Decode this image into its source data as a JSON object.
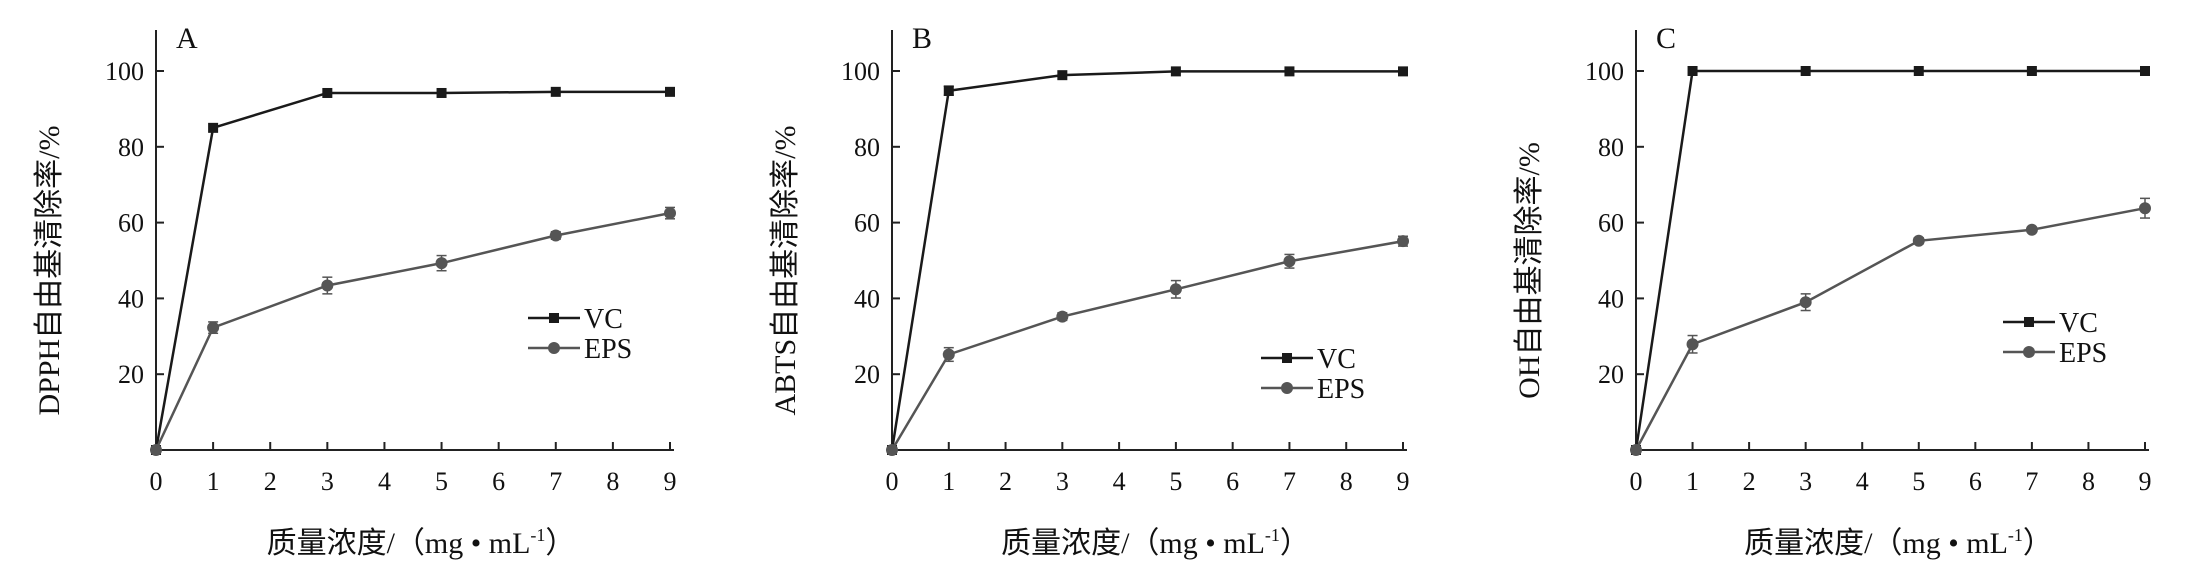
{
  "figure": {
    "x_title": "质量浓度/（mg • mL",
    "x_title_sup": "-1",
    "x_title_end": "）"
  },
  "chart_data": [
    {
      "type": "line",
      "panel": "A",
      "ylabel": "DPPH自由基清除率/%",
      "xlabel": "质量浓度/（mg • mL-1）",
      "xlim": [
        0,
        9
      ],
      "ylim": [
        0,
        100
      ],
      "x_ticks": [
        0,
        1,
        2,
        3,
        4,
        5,
        6,
        7,
        8,
        9
      ],
      "y_ticks": [
        20,
        40,
        60,
        80,
        100
      ],
      "legend_position": "right-middle",
      "series": [
        {
          "name": "VC",
          "marker": "square",
          "color": "#1a1a1a",
          "x": [
            0,
            1,
            3,
            5,
            7,
            9
          ],
          "y": [
            0,
            85.0,
            94.2,
            94.2,
            94.5,
            94.5
          ],
          "err": [
            0,
            0,
            0,
            0,
            0,
            0
          ]
        },
        {
          "name": "EPS",
          "marker": "circle",
          "color": "#555555",
          "x": [
            0,
            1,
            3,
            5,
            7,
            9
          ],
          "y": [
            0,
            32.3,
            43.4,
            49.3,
            56.6,
            62.5
          ],
          "err": [
            0,
            1.5,
            2.2,
            2.0,
            1.0,
            1.5
          ]
        }
      ]
    },
    {
      "type": "line",
      "panel": "B",
      "ylabel": "ABTS自由基清除率/%",
      "xlabel": "质量浓度/（mg • mL-1）",
      "xlim": [
        0,
        9
      ],
      "ylim": [
        0,
        100
      ],
      "x_ticks": [
        0,
        1,
        2,
        3,
        4,
        5,
        6,
        7,
        8,
        9
      ],
      "y_ticks": [
        20,
        40,
        60,
        80,
        100
      ],
      "legend_position": "right-middle",
      "series": [
        {
          "name": "VC",
          "marker": "square",
          "color": "#1a1a1a",
          "x": [
            0,
            1,
            3,
            5,
            7,
            9
          ],
          "y": [
            0,
            94.8,
            98.9,
            99.9,
            99.9,
            99.9
          ],
          "err": [
            0,
            1.2,
            0,
            0,
            0,
            0
          ]
        },
        {
          "name": "EPS",
          "marker": "circle",
          "color": "#555555",
          "x": [
            0,
            1,
            3,
            5,
            7,
            9
          ],
          "y": [
            0,
            25.2,
            35.2,
            42.4,
            49.8,
            55.1
          ],
          "err": [
            0,
            1.8,
            1.0,
            2.3,
            1.8,
            1.3
          ]
        }
      ]
    },
    {
      "type": "line",
      "panel": "C",
      "ylabel": "OH自由基清除率/%",
      "xlabel": "质量浓度/（mg • mL-1）",
      "xlim": [
        0,
        9
      ],
      "ylim": [
        0,
        100
      ],
      "x_ticks": [
        0,
        1,
        2,
        3,
        4,
        5,
        6,
        7,
        8,
        9
      ],
      "y_ticks": [
        20,
        40,
        60,
        80,
        100
      ],
      "legend_position": "right-middle",
      "series": [
        {
          "name": "VC",
          "marker": "square",
          "color": "#1a1a1a",
          "x": [
            0,
            1,
            3,
            5,
            7,
            9
          ],
          "y": [
            0,
            100,
            100,
            100,
            100,
            100
          ],
          "err": [
            0,
            0,
            0,
            0,
            0,
            0
          ]
        },
        {
          "name": "EPS",
          "marker": "circle",
          "color": "#555555",
          "x": [
            0,
            1,
            3,
            5,
            7,
            9
          ],
          "y": [
            0,
            27.9,
            39.0,
            55.2,
            58.1,
            63.8
          ],
          "err": [
            0,
            2.3,
            2.2,
            0.8,
            0.6,
            2.6
          ]
        }
      ]
    }
  ]
}
